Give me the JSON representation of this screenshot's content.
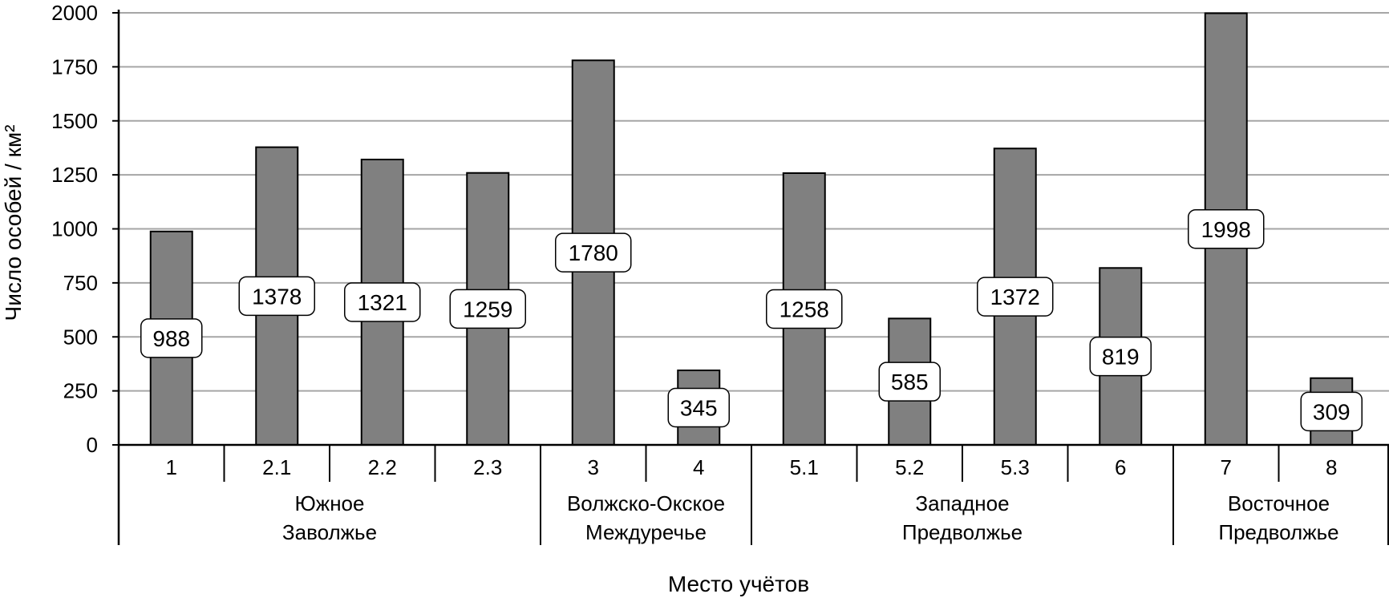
{
  "chart_data": {
    "type": "bar",
    "xlabel": "Место учётов",
    "ylabel": "Число особей / км²",
    "ylim": [
      0,
      2000
    ],
    "yticks": [
      0,
      250,
      500,
      750,
      1000,
      1250,
      1500,
      1750,
      2000
    ],
    "grid": true,
    "categories": [
      "1",
      "2.1",
      "2.2",
      "2.3",
      "3",
      "4",
      "5.1",
      "5.2",
      "5.3",
      "6",
      "7",
      "8"
    ],
    "values": [
      988,
      1378,
      1321,
      1259,
      1780,
      345,
      1258,
      585,
      1372,
      819,
      1998,
      309
    ],
    "data_labels": [
      "988",
      "1378",
      "1321",
      "1259",
      "1780",
      "345",
      "1258",
      "585",
      "1372",
      "819",
      "1998",
      "309"
    ],
    "groups": [
      {
        "lines": [
          "Южное",
          "Заволжье"
        ],
        "start": 0,
        "end": 3
      },
      {
        "lines": [
          "Волжско-Окское",
          "Междуречье"
        ],
        "start": 4,
        "end": 5
      },
      {
        "lines": [
          "Западное",
          "Предволжье"
        ],
        "start": 6,
        "end": 9
      },
      {
        "lines": [
          "Восточное",
          "Предволжье"
        ],
        "start": 10,
        "end": 11
      }
    ],
    "colors": {
      "bar": "#808080",
      "bar_stroke": "#000000",
      "grid": "#a6a6a6",
      "label_bg": "#ffffff"
    }
  }
}
